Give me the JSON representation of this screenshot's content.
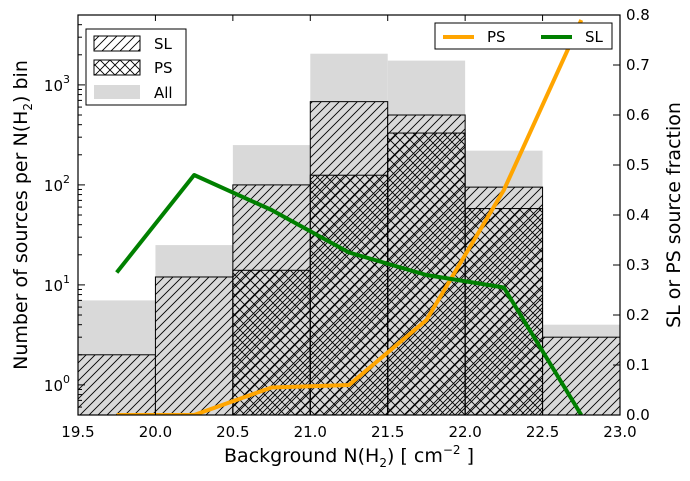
{
  "chart_data": {
    "type": "bar",
    "x_bin_edges": [
      19.5,
      20.0,
      20.5,
      21.0,
      21.5,
      22.0,
      22.5,
      23.0
    ],
    "xlim": [
      19.5,
      23.0
    ],
    "x_ticks": [
      19.5,
      20.0,
      20.5,
      21.0,
      21.5,
      22.0,
      22.5,
      23.0
    ],
    "x_tick_labels": [
      "19.5",
      "20.0",
      "20.5",
      "21.0",
      "21.5",
      "22.0",
      "22.5",
      "23.0"
    ],
    "xlabel_text": "Background N(H",
    "xlabel_sub": "2",
    "xlabel_mid": ") [ cm",
    "xlabel_sup": "−2",
    "xlabel_end": " ]",
    "ylabel_left_text": "Number of sources per N(H",
    "ylabel_left_sub": "2",
    "ylabel_left_end": ") bin",
    "ylabel_right": "SL or PS source fraction",
    "y_left_scale": "log",
    "y_left_ylim": [
      0.5,
      5000
    ],
    "y_left_ticks": [
      {
        "value": 1,
        "base": "10",
        "exp": "0"
      },
      {
        "value": 10,
        "base": "10",
        "exp": "1"
      },
      {
        "value": 100,
        "base": "10",
        "exp": "2"
      },
      {
        "value": 1000,
        "base": "10",
        "exp": "3"
      }
    ],
    "y_right_ylim": [
      0.0,
      0.8
    ],
    "y_right_ticks": [
      "0.0",
      "0.1",
      "0.2",
      "0.3",
      "0.4",
      "0.5",
      "0.6",
      "0.7",
      "0.8"
    ],
    "histograms": [
      {
        "name": "All",
        "style": "solid",
        "color": "#d9d9d9",
        "values": [
          7,
          25,
          250,
          2050,
          1750,
          220,
          4
        ]
      },
      {
        "name": "SL",
        "style": "hatch-diagonal",
        "values": [
          2,
          12,
          100,
          680,
          500,
          95,
          3
        ]
      },
      {
        "name": "PS",
        "style": "hatch-cross",
        "values": [
          0,
          0,
          14,
          125,
          330,
          58,
          0
        ]
      }
    ],
    "lines": [
      {
        "name": "PS",
        "color": "#ffa500",
        "x": [
          19.75,
          20.25,
          20.75,
          21.25,
          21.75,
          22.25,
          22.75
        ],
        "y": [
          0.0,
          0.0,
          0.055,
          0.06,
          0.19,
          0.45,
          0.79
        ]
      },
      {
        "name": "SL",
        "color": "#008000",
        "x": [
          19.75,
          20.25,
          20.75,
          21.25,
          21.75,
          22.25,
          22.75
        ],
        "y": [
          0.285,
          0.48,
          0.41,
          0.325,
          0.28,
          0.255,
          0.0
        ]
      }
    ],
    "legend_hist": {
      "placement": "upper-left",
      "items": [
        "SL",
        "PS",
        "All"
      ]
    },
    "legend_lines": {
      "placement": "upper-right",
      "items": [
        "PS",
        "SL"
      ]
    }
  }
}
